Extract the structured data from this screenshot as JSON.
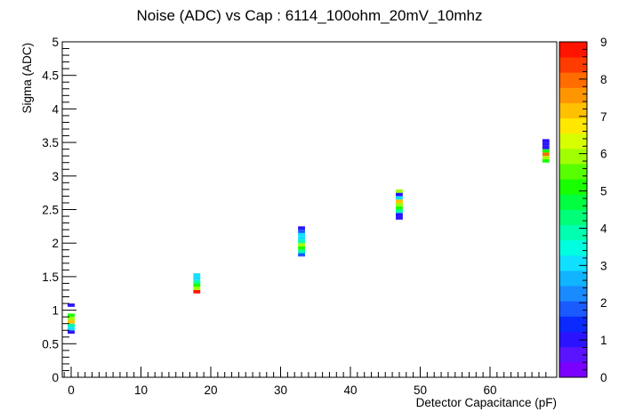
{
  "chart_data": {
    "type": "heatmap",
    "title": "Noise (ADC) vs Cap : 6114_100ohm_20mV_10mhz",
    "xlabel": "Detector Capacitance (pF)",
    "ylabel": "Sigma (ADC)",
    "xlim": [
      -2,
      69
    ],
    "ylim": [
      0,
      5
    ],
    "x_ticks": [
      "0",
      "10",
      "20",
      "30",
      "40",
      "50",
      "60"
    ],
    "y_ticks": [
      "0",
      "0.5",
      "1",
      "1.5",
      "2",
      "2.5",
      "3",
      "3.5",
      "4",
      "4.5",
      "5"
    ],
    "z_ticks": [
      "0",
      "1",
      "2",
      "3",
      "4",
      "5",
      "6",
      "7",
      "8",
      "9"
    ],
    "zlim": [
      0,
      9
    ],
    "grid": false,
    "bin_width_x": 1,
    "bin_height_y": 0.05,
    "cells": [
      {
        "x": 0,
        "y": 0.675,
        "z": 1
      },
      {
        "x": 0,
        "y": 0.725,
        "z": 3
      },
      {
        "x": 0,
        "y": 0.775,
        "z": 4
      },
      {
        "x": 0,
        "y": 0.825,
        "z": 7
      },
      {
        "x": 0,
        "y": 0.875,
        "z": 6
      },
      {
        "x": 0,
        "y": 0.925,
        "z": 5
      },
      {
        "x": 0,
        "y": 1.075,
        "z": 1
      },
      {
        "x": 18,
        "y": 1.275,
        "z": 9
      },
      {
        "x": 18,
        "y": 1.325,
        "z": 6
      },
      {
        "x": 18,
        "y": 1.375,
        "z": 5
      },
      {
        "x": 18,
        "y": 1.425,
        "z": 4
      },
      {
        "x": 18,
        "y": 1.475,
        "z": 3
      },
      {
        "x": 18,
        "y": 1.525,
        "z": 3
      },
      {
        "x": 33,
        "y": 1.825,
        "z": 2
      },
      {
        "x": 33,
        "y": 1.875,
        "z": 4
      },
      {
        "x": 33,
        "y": 1.925,
        "z": 5
      },
      {
        "x": 33,
        "y": 1.975,
        "z": 6
      },
      {
        "x": 33,
        "y": 2.025,
        "z": 4
      },
      {
        "x": 33,
        "y": 2.075,
        "z": 3
      },
      {
        "x": 33,
        "y": 2.125,
        "z": 3
      },
      {
        "x": 33,
        "y": 2.175,
        "z": 2
      },
      {
        "x": 33,
        "y": 2.225,
        "z": 1
      },
      {
        "x": 47,
        "y": 2.375,
        "z": 1
      },
      {
        "x": 47,
        "y": 2.425,
        "z": 1
      },
      {
        "x": 47,
        "y": 2.475,
        "z": 4
      },
      {
        "x": 47,
        "y": 2.525,
        "z": 5
      },
      {
        "x": 47,
        "y": 2.575,
        "z": 6
      },
      {
        "x": 47,
        "y": 2.625,
        "z": 7
      },
      {
        "x": 47,
        "y": 2.675,
        "z": 3
      },
      {
        "x": 47,
        "y": 2.725,
        "z": 1
      },
      {
        "x": 47,
        "y": 2.775,
        "z": 6
      },
      {
        "x": 68,
        "y": 3.225,
        "z": 5
      },
      {
        "x": 68,
        "y": 3.275,
        "z": 6
      },
      {
        "x": 68,
        "y": 3.325,
        "z": 8
      },
      {
        "x": 68,
        "y": 3.375,
        "z": 5
      },
      {
        "x": 68,
        "y": 3.425,
        "z": 1
      },
      {
        "x": 68,
        "y": 3.475,
        "z": 1
      },
      {
        "x": 68,
        "y": 3.525,
        "z": 1
      }
    ],
    "palette": [
      "#7a00ff",
      "#5a14ff",
      "#2a14ff",
      "#0a2aff",
      "#1a5aff",
      "#1a8aff",
      "#10b4ff",
      "#10e0ff",
      "#00ffe0",
      "#00ffb0",
      "#00ff78",
      "#00ff40",
      "#18ff00",
      "#58ff00",
      "#a0ff00",
      "#d8ff00",
      "#ffe800",
      "#ffc000",
      "#ff9600",
      "#ff6c00",
      "#ff3c00",
      "#ff1400"
    ]
  }
}
